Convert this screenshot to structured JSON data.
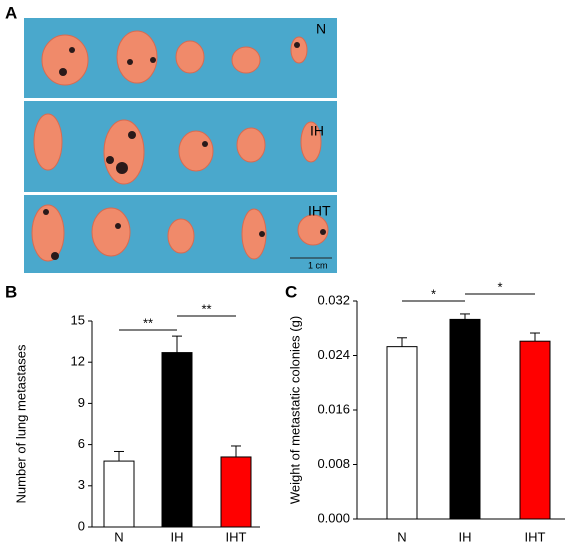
{
  "panel_a": {
    "label": "A",
    "groups": [
      "N",
      "IH",
      "IHT"
    ],
    "scale": "1 cm"
  },
  "chart_data": [
    {
      "type": "bar",
      "label": "B",
      "y_label": "Number of lung metastases",
      "categories": [
        "N",
        "IH",
        "IHT"
      ],
      "values": [
        4.8,
        12.7,
        5.1
      ],
      "errors": [
        0.7,
        1.2,
        0.8
      ],
      "colors": [
        "#ffffff",
        "#000000",
        "#ff0000"
      ],
      "ylim": [
        0,
        15
      ],
      "yticks": [
        0,
        3,
        6,
        9,
        12,
        15
      ],
      "annotations": [
        "**",
        "**"
      ]
    },
    {
      "type": "bar",
      "label": "C",
      "y_label": "Weight of metastatic colonies (g)",
      "categories": [
        "N",
        "IH",
        "IHT"
      ],
      "values": [
        0.0253,
        0.0293,
        0.0261
      ],
      "errors": [
        0.0013,
        0.0008,
        0.0012
      ],
      "colors": [
        "#ffffff",
        "#000000",
        "#ff0000"
      ],
      "ylim": [
        0,
        0.032
      ],
      "yticks": [
        {
          "value": 0,
          "label": "0.000"
        },
        0.008,
        0.016,
        0.024,
        0.032
      ],
      "annotations": [
        "*",
        "*"
      ]
    }
  ]
}
